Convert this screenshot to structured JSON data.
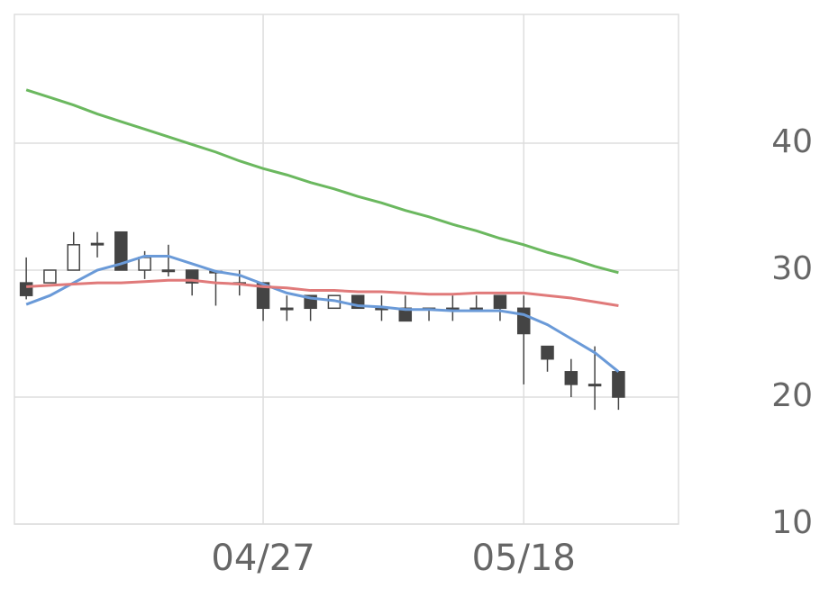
{
  "chart_data": {
    "type": "candlestick",
    "categories": [
      null,
      null,
      null,
      null,
      null,
      null,
      null,
      null,
      null,
      null,
      "04/27",
      null,
      null,
      null,
      null,
      null,
      null,
      null,
      null,
      null,
      null,
      "05/18",
      null,
      null,
      null,
      null
    ],
    "open": [
      29,
      29,
      30,
      32,
      33,
      30,
      30,
      30,
      29.9,
      29,
      29,
      27,
      28,
      27,
      28,
      27,
      27,
      27,
      27,
      27,
      28,
      27,
      24,
      22,
      21,
      22
    ],
    "high": [
      31,
      30,
      33,
      33,
      33,
      31.5,
      32,
      30,
      30,
      30,
      29,
      28,
      28,
      28,
      28,
      28,
      28,
      27,
      28,
      28,
      28,
      28,
      24,
      23,
      24,
      22
    ],
    "low": [
      27.7,
      29,
      30,
      31,
      30,
      29.3,
      29.5,
      28,
      27.2,
      28,
      26,
      26,
      26,
      27,
      27,
      26,
      26,
      26,
      26,
      27,
      26,
      21,
      22,
      20,
      19,
      19
    ],
    "close": [
      28,
      30,
      32,
      32.1,
      30,
      31,
      30,
      29,
      29.9,
      29,
      27,
      27,
      27,
      28,
      27,
      27,
      26,
      27,
      27,
      27,
      27,
      25,
      23,
      21,
      21,
      20
    ],
    "up_color": "#ffffff",
    "down_color": "#444444",
    "candle_stroke": "#444444",
    "series": [
      {
        "color": "#6a9ad8",
        "values": [
          27.3,
          28.0,
          29.0,
          30.0,
          30.5,
          31.1,
          31.1,
          30.5,
          29.9,
          29.6,
          28.9,
          28.2,
          27.8,
          27.6,
          27.2,
          27.1,
          26.9,
          26.9,
          26.8,
          26.8,
          26.8,
          26.5,
          25.7,
          24.6,
          23.5,
          22.0
        ]
      },
      {
        "color": "#e07a7a",
        "values": [
          28.7,
          28.8,
          28.9,
          29.0,
          29.0,
          29.1,
          29.2,
          29.2,
          29.0,
          28.9,
          28.7,
          28.6,
          28.4,
          28.4,
          28.3,
          28.3,
          28.2,
          28.1,
          28.1,
          28.2,
          28.2,
          28.2,
          28.0,
          27.8,
          27.5,
          27.2
        ]
      },
      {
        "color": "#6bb85f",
        "values": [
          44.2,
          43.6,
          43.0,
          42.3,
          41.7,
          41.1,
          40.5,
          39.9,
          39.3,
          38.6,
          38.0,
          37.5,
          36.9,
          36.4,
          35.8,
          35.3,
          34.7,
          34.2,
          33.6,
          33.1,
          32.5,
          32.0,
          31.4,
          30.9,
          30.3,
          29.8
        ]
      }
    ],
    "ylim": [
      10,
      50
    ],
    "yticks": [
      10,
      20,
      30,
      40
    ],
    "grid": true
  }
}
